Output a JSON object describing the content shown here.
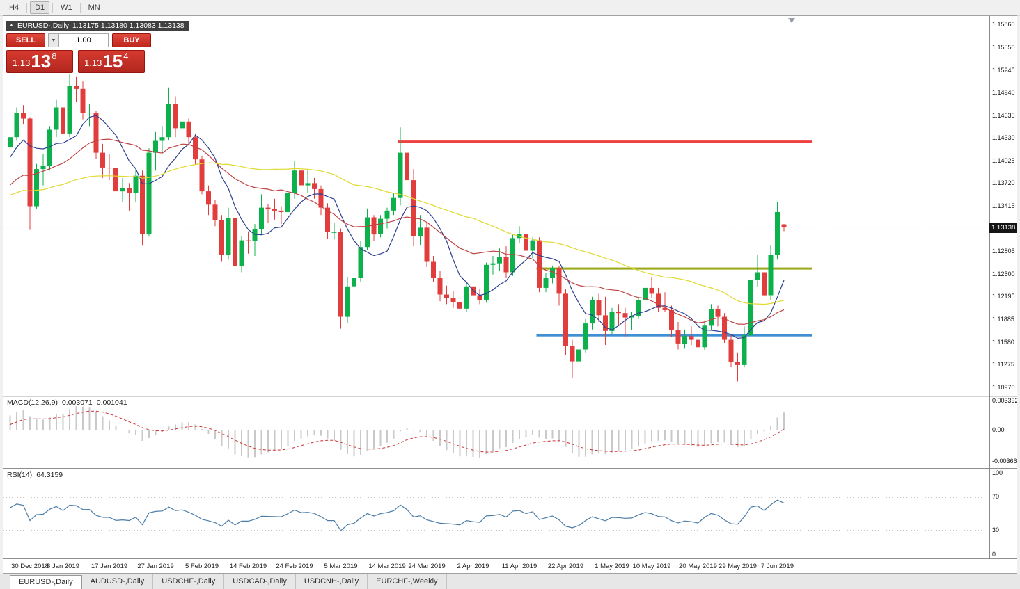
{
  "toolbar": {
    "timeframes": [
      {
        "label": "H4",
        "active": false
      },
      {
        "label": "D1",
        "active": true
      },
      {
        "label": "W1",
        "active": false
      },
      {
        "label": "MN",
        "active": false
      }
    ]
  },
  "chart_header": {
    "title": "EURUSD-,Daily",
    "ohlc": "1.13175 1.13180 1.13083 1.13138"
  },
  "one_click_panel": {
    "sell_label": "SELL",
    "buy_label": "BUY",
    "volume": "1.00",
    "sell_price": {
      "prefix": "1.13",
      "big": "13",
      "sup": "8"
    },
    "buy_price": {
      "prefix": "1.13",
      "big": "15",
      "sup": "4"
    }
  },
  "price_axis": {
    "max": 1.15982,
    "min": 1.10867,
    "ticks": [
      "1.15860",
      "1.15550",
      "1.15245",
      "1.14940",
      "1.14635",
      "1.14330",
      "1.14025",
      "1.13720",
      "1.13415",
      "1.12805",
      "1.12500",
      "1.12195",
      "1.11885",
      "1.11580",
      "1.11275",
      "1.10970"
    ],
    "current_price": 1.13138,
    "current_label": "1.13138"
  },
  "chart_data": {
    "type": "candlestick",
    "symbol": "EURUSD-",
    "timeframe": "Daily",
    "colors": {
      "bull": "#0db14b",
      "bear": "#e23d3d",
      "ma_fast": "#2e3f8f",
      "ma_mid": "#c04343",
      "ma_slow": "#e0d92e",
      "level_red": "#f04141",
      "level_olive": "#9aa816",
      "level_blue": "#3f8fd2"
    },
    "moving_averages": [
      {
        "period": 8,
        "color_key": "ma_fast"
      },
      {
        "period": 21,
        "color_key": "ma_mid"
      },
      {
        "period": 50,
        "color_key": "ma_slow"
      }
    ],
    "levels": [
      {
        "price": 1.1429,
        "color_key": "level_red",
        "from_index": 59
      },
      {
        "price": 1.1258,
        "color_key": "level_olive",
        "from_index": 80
      },
      {
        "price": 1.1168,
        "color_key": "level_blue",
        "from_index": 80
      }
    ],
    "indicator_warmup_closes": [
      1.1408,
      1.1365,
      1.1338,
      1.132,
      1.1272,
      1.1298,
      1.133,
      1.134,
      1.1322,
      1.129,
      1.1302,
      1.1344,
      1.1355,
      1.133,
      1.1333,
      1.1375,
      1.1392,
      1.1368,
      1.138,
      1.1344,
      1.1312,
      1.1332,
      1.135,
      1.1358,
      1.1382,
      1.1405,
      1.1418,
      1.1402,
      1.1422,
      1.144
    ],
    "candles": [
      [
        1.1421,
        1.1445,
        1.1415,
        1.1435
      ],
      [
        1.1435,
        1.1475,
        1.143,
        1.1467
      ],
      [
        1.1467,
        1.1478,
        1.1452,
        1.146
      ],
      [
        1.146,
        1.1462,
        1.131,
        1.1342
      ],
      [
        1.1342,
        1.1399,
        1.1338,
        1.1392
      ],
      [
        1.1392,
        1.1412,
        1.137,
        1.1396
      ],
      [
        1.1396,
        1.145,
        1.139,
        1.1445
      ],
      [
        1.1445,
        1.1485,
        1.1435,
        1.1475
      ],
      [
        1.1475,
        1.1482,
        1.1432,
        1.144
      ],
      [
        1.144,
        1.152,
        1.1435,
        1.1504
      ],
      [
        1.1504,
        1.1516,
        1.1483,
        1.15
      ],
      [
        1.15,
        1.151,
        1.1459,
        1.1467
      ],
      [
        1.1467,
        1.148,
        1.145,
        1.1468
      ],
      [
        1.1468,
        1.147,
        1.1406,
        1.1414
      ],
      [
        1.1414,
        1.1426,
        1.138,
        1.1394
      ],
      [
        1.1394,
        1.1412,
        1.1377,
        1.1393
      ],
      [
        1.1393,
        1.1398,
        1.1353,
        1.1362
      ],
      [
        1.1362,
        1.138,
        1.1348,
        1.1366
      ],
      [
        1.1366,
        1.1373,
        1.1336,
        1.136
      ],
      [
        1.136,
        1.1392,
        1.1347,
        1.1383
      ],
      [
        1.1383,
        1.139,
        1.1289,
        1.1305
      ],
      [
        1.1305,
        1.142,
        1.1301,
        1.1414
      ],
      [
        1.1414,
        1.1442,
        1.139,
        1.143
      ],
      [
        1.143,
        1.145,
        1.1413,
        1.1435
      ],
      [
        1.1435,
        1.1502,
        1.1431,
        1.148
      ],
      [
        1.148,
        1.149,
        1.1435,
        1.1447
      ],
      [
        1.1447,
        1.1489,
        1.1434,
        1.1456
      ],
      [
        1.1456,
        1.146,
        1.1425,
        1.1435
      ],
      [
        1.1435,
        1.144,
        1.1398,
        1.1405
      ],
      [
        1.1405,
        1.141,
        1.1358,
        1.1362
      ],
      [
        1.1362,
        1.137,
        1.133,
        1.1344
      ],
      [
        1.1344,
        1.135,
        1.1315,
        1.1323
      ],
      [
        1.1323,
        1.133,
        1.1267,
        1.1276
      ],
      [
        1.1276,
        1.134,
        1.127,
        1.1326
      ],
      [
        1.1326,
        1.133,
        1.1248,
        1.1261
      ],
      [
        1.1261,
        1.1302,
        1.1253,
        1.1296
      ],
      [
        1.1296,
        1.1308,
        1.1278,
        1.1295
      ],
      [
        1.1295,
        1.1318,
        1.1275,
        1.1311
      ],
      [
        1.1311,
        1.1358,
        1.1305,
        1.134
      ],
      [
        1.134,
        1.1345,
        1.132,
        1.1338
      ],
      [
        1.1338,
        1.1352,
        1.1324,
        1.1336
      ],
      [
        1.1336,
        1.1342,
        1.1318,
        1.1334
      ],
      [
        1.1334,
        1.1368,
        1.133,
        1.136
      ],
      [
        1.136,
        1.1403,
        1.1352,
        1.139
      ],
      [
        1.139,
        1.1404,
        1.136,
        1.137
      ],
      [
        1.137,
        1.139,
        1.136,
        1.1373
      ],
      [
        1.1373,
        1.138,
        1.1352,
        1.1365
      ],
      [
        1.1365,
        1.137,
        1.133,
        1.134
      ],
      [
        1.134,
        1.1346,
        1.1298,
        1.1307
      ],
      [
        1.1307,
        1.132,
        1.1297,
        1.1307
      ],
      [
        1.1307,
        1.1312,
        1.1177,
        1.1193
      ],
      [
        1.1193,
        1.1246,
        1.1185,
        1.1234
      ],
      [
        1.1234,
        1.125,
        1.1221,
        1.1245
      ],
      [
        1.1245,
        1.1295,
        1.124,
        1.1287
      ],
      [
        1.1287,
        1.1339,
        1.1283,
        1.1327
      ],
      [
        1.1327,
        1.133,
        1.1295,
        1.1304
      ],
      [
        1.1304,
        1.133,
        1.13,
        1.1325
      ],
      [
        1.1325,
        1.134,
        1.1312,
        1.1336
      ],
      [
        1.1336,
        1.136,
        1.133,
        1.1353
      ],
      [
        1.1353,
        1.1448,
        1.1343,
        1.1414
      ],
      [
        1.1414,
        1.142,
        1.1367,
        1.1377
      ],
      [
        1.1377,
        1.1392,
        1.1288,
        1.1302
      ],
      [
        1.1302,
        1.133,
        1.129,
        1.1313
      ],
      [
        1.1313,
        1.1319,
        1.126,
        1.1267
      ],
      [
        1.1267,
        1.1275,
        1.124,
        1.1245
      ],
      [
        1.1245,
        1.1255,
        1.1214,
        1.1223
      ],
      [
        1.1223,
        1.1235,
        1.121,
        1.1218
      ],
      [
        1.1218,
        1.1228,
        1.1205,
        1.1213
      ],
      [
        1.1213,
        1.1222,
        1.1183,
        1.1204
      ],
      [
        1.1204,
        1.124,
        1.12,
        1.1234
      ],
      [
        1.1234,
        1.1244,
        1.1213,
        1.1222
      ],
      [
        1.1222,
        1.123,
        1.121,
        1.1216
      ],
      [
        1.1216,
        1.1266,
        1.1212,
        1.1263
      ],
      [
        1.1263,
        1.1275,
        1.125,
        1.1265
      ],
      [
        1.1265,
        1.1285,
        1.1255,
        1.1274
      ],
      [
        1.1274,
        1.1288,
        1.1245,
        1.1253
      ],
      [
        1.1253,
        1.1305,
        1.1248,
        1.1299
      ],
      [
        1.1299,
        1.1315,
        1.1292,
        1.1304
      ],
      [
        1.1304,
        1.131,
        1.1278,
        1.1282
      ],
      [
        1.1282,
        1.13,
        1.1272,
        1.1296
      ],
      [
        1.1296,
        1.13,
        1.1226,
        1.1232
      ],
      [
        1.1232,
        1.1252,
        1.1226,
        1.1245
      ],
      [
        1.1245,
        1.1262,
        1.1238,
        1.1258
      ],
      [
        1.1258,
        1.1262,
        1.1208,
        1.1224
      ],
      [
        1.1224,
        1.123,
        1.1141,
        1.1154
      ],
      [
        1.1154,
        1.1162,
        1.1111,
        1.1133
      ],
      [
        1.1133,
        1.1156,
        1.1126,
        1.1149
      ],
      [
        1.1149,
        1.119,
        1.1145,
        1.1184
      ],
      [
        1.1184,
        1.122,
        1.1176,
        1.1215
      ],
      [
        1.1215,
        1.1224,
        1.1186,
        1.1195
      ],
      [
        1.1195,
        1.122,
        1.1155,
        1.1174
      ],
      [
        1.1174,
        1.1205,
        1.117,
        1.12
      ],
      [
        1.12,
        1.121,
        1.1182,
        1.1198
      ],
      [
        1.1198,
        1.1205,
        1.1166,
        1.1192
      ],
      [
        1.1192,
        1.12,
        1.1175,
        1.1194
      ],
      [
        1.1194,
        1.122,
        1.119,
        1.1215
      ],
      [
        1.1215,
        1.124,
        1.121,
        1.1232
      ],
      [
        1.1232,
        1.1246,
        1.1218,
        1.1224
      ],
      [
        1.1224,
        1.1232,
        1.12,
        1.1205
      ],
      [
        1.1205,
        1.1226,
        1.12,
        1.1202
      ],
      [
        1.1202,
        1.1208,
        1.1166,
        1.1175
      ],
      [
        1.1175,
        1.1186,
        1.1149,
        1.1157
      ],
      [
        1.1157,
        1.1176,
        1.115,
        1.1167
      ],
      [
        1.1167,
        1.118,
        1.1155,
        1.1162
      ],
      [
        1.1162,
        1.1168,
        1.1142,
        1.1152
      ],
      [
        1.1152,
        1.1188,
        1.1148,
        1.1181
      ],
      [
        1.1181,
        1.121,
        1.1175,
        1.1203
      ],
      [
        1.1203,
        1.1208,
        1.118,
        1.1193
      ],
      [
        1.1193,
        1.1198,
        1.1158,
        1.1162
      ],
      [
        1.1162,
        1.117,
        1.1125,
        1.1132
      ],
      [
        1.1132,
        1.1145,
        1.1106,
        1.1128
      ],
      [
        1.1128,
        1.118,
        1.1125,
        1.1168
      ],
      [
        1.1168,
        1.125,
        1.116,
        1.1243
      ],
      [
        1.1243,
        1.1276,
        1.1233,
        1.1253
      ],
      [
        1.1253,
        1.1262,
        1.1201,
        1.1222
      ],
      [
        1.1222,
        1.129,
        1.1215,
        1.1276
      ],
      [
        1.1276,
        1.1348,
        1.127,
        1.1334
      ],
      [
        1.13175,
        1.1318,
        1.13083,
        1.13138
      ]
    ],
    "date_labels": [
      {
        "label": "30 Dec 2018",
        "index": 0
      },
      {
        "label": "8 Jan 2019",
        "index": 8
      },
      {
        "label": "17 Jan 2019",
        "index": 15
      },
      {
        "label": "27 Jan 2019",
        "index": 22
      },
      {
        "label": "5 Feb 2019",
        "index": 29
      },
      {
        "label": "14 Feb 2019",
        "index": 36
      },
      {
        "label": "24 Feb 2019",
        "index": 43
      },
      {
        "label": "5 Mar 2019",
        "index": 50
      },
      {
        "label": "14 Mar 2019",
        "index": 57
      },
      {
        "label": "24 Mar 2019",
        "index": 63
      },
      {
        "label": "2 Apr 2019",
        "index": 70
      },
      {
        "label": "11 Apr 2019",
        "index": 77
      },
      {
        "label": "22 Apr 2019",
        "index": 84
      },
      {
        "label": "1 May 2019",
        "index": 91
      },
      {
        "label": "10 May 2019",
        "index": 97
      },
      {
        "label": "20 May 2019",
        "index": 104
      },
      {
        "label": "29 May 2019",
        "index": 110
      },
      {
        "label": "7 Jun 2019",
        "index": 116
      }
    ]
  },
  "macd_panel": {
    "label": "MACD(12,26,9)",
    "value_main": "0.003071",
    "value_signal": "0.001041",
    "axis": [
      "0.003392",
      "0.00",
      "-0.003664"
    ],
    "fast": 12,
    "slow": 26,
    "signal": 9
  },
  "rsi_panel": {
    "label": "RSI(14)",
    "value": "64.3159",
    "axis": [
      "100",
      "70",
      "30",
      "0"
    ],
    "period": 14,
    "levels": [
      70,
      30
    ]
  },
  "tabs": [
    {
      "label": "EURUSD-,Daily",
      "active": true
    },
    {
      "label": "AUDUSD-,Daily",
      "active": false
    },
    {
      "label": "USDCHF-,Daily",
      "active": false
    },
    {
      "label": "USDCAD-,Daily",
      "active": false
    },
    {
      "label": "USDCNH-,Daily",
      "active": false
    },
    {
      "label": "EURCHF-,Weekly",
      "active": false
    }
  ]
}
